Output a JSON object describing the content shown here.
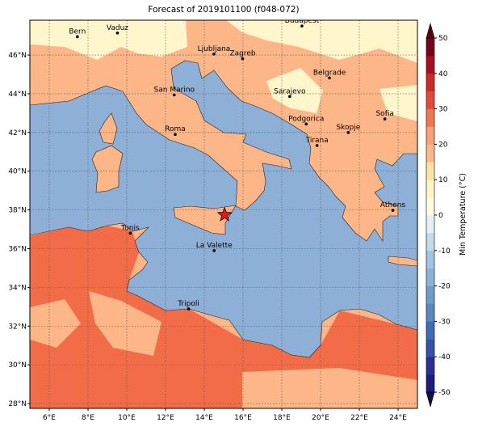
{
  "title": "Forecast of 2019101100 (f048-072)",
  "extent": {
    "lon": [
      5,
      25
    ],
    "lat": [
      27.75,
      47.8
    ]
  },
  "lon_ticks": [
    {
      "value": 6,
      "label": "6°E"
    },
    {
      "value": 8,
      "label": "8°E"
    },
    {
      "value": 10,
      "label": "10°E"
    },
    {
      "value": 12,
      "label": "12°E"
    },
    {
      "value": 14,
      "label": "14°E"
    },
    {
      "value": 16,
      "label": "16°E"
    },
    {
      "value": 18,
      "label": "18°E"
    },
    {
      "value": 20,
      "label": "20°E"
    },
    {
      "value": 22,
      "label": "22°E"
    },
    {
      "value": 24,
      "label": "24°E"
    }
  ],
  "lat_ticks": [
    {
      "value": 28,
      "label": "28°N"
    },
    {
      "value": 30,
      "label": "30°N"
    },
    {
      "value": 32,
      "label": "32°N"
    },
    {
      "value": 34,
      "label": "34°N"
    },
    {
      "value": 36,
      "label": "36°N"
    },
    {
      "value": 38,
      "label": "38°N"
    },
    {
      "value": 40,
      "label": "40°N"
    },
    {
      "value": 42,
      "label": "42°N"
    },
    {
      "value": 44,
      "label": "44°N"
    },
    {
      "value": 46,
      "label": "46°N"
    }
  ],
  "cities": [
    {
      "name": "Bern",
      "lon": 7.45,
      "lat": 46.95
    },
    {
      "name": "Vaduz",
      "lon": 9.52,
      "lat": 47.14
    },
    {
      "name": "Budapest",
      "lon": 19.04,
      "lat": 47.5
    },
    {
      "name": "Ljubljana",
      "lon": 14.5,
      "lat": 46.05
    },
    {
      "name": "Zagreb",
      "lon": 15.98,
      "lat": 45.81
    },
    {
      "name": "Belgrade",
      "lon": 20.46,
      "lat": 44.82
    },
    {
      "name": "San Marino",
      "lon": 12.45,
      "lat": 43.94
    },
    {
      "name": "Sarajevo",
      "lon": 18.41,
      "lat": 43.86
    },
    {
      "name": "Sofia",
      "lon": 23.32,
      "lat": 42.7
    },
    {
      "name": "Podgorica",
      "lon": 19.26,
      "lat": 42.44
    },
    {
      "name": "Skopje",
      "lon": 21.43,
      "lat": 42.0
    },
    {
      "name": "Roma",
      "lon": 12.5,
      "lat": 41.9
    },
    {
      "name": "Tirana",
      "lon": 19.82,
      "lat": 41.33
    },
    {
      "name": "Athens",
      "lon": 23.73,
      "lat": 37.98
    },
    {
      "name": "Tunis",
      "lon": 10.18,
      "lat": 36.8
    },
    {
      "name": "La Valette",
      "lon": 14.51,
      "lat": 35.9
    },
    {
      "name": "Tripoli",
      "lon": 13.19,
      "lat": 32.89
    }
  ],
  "star": {
    "lon": 15.05,
    "lat": 37.75,
    "color": "#e8141c"
  },
  "colorbar": {
    "label": "Min Temperature (°C)",
    "range": [
      -50,
      50
    ],
    "ticks": [
      -50,
      -40,
      -30,
      -20,
      -10,
      0,
      10,
      20,
      30,
      40,
      50
    ],
    "colors": [
      "#1c1c7a",
      "#2a2f96",
      "#3552a8",
      "#3f6db5",
      "#5a88c0",
      "#6f9cc8",
      "#8bb2d6",
      "#a3c4df",
      "#c3dbeb",
      "#e3f1f7",
      "#fffde0",
      "#fff5c7",
      "#fde3a4",
      "#fcb889",
      "#f9a07a",
      "#f07850",
      "#e4483a",
      "#cf2a2a",
      "#a80f24",
      "#7a0019"
    ],
    "under": "#10104e",
    "over": "#5a0010"
  }
}
